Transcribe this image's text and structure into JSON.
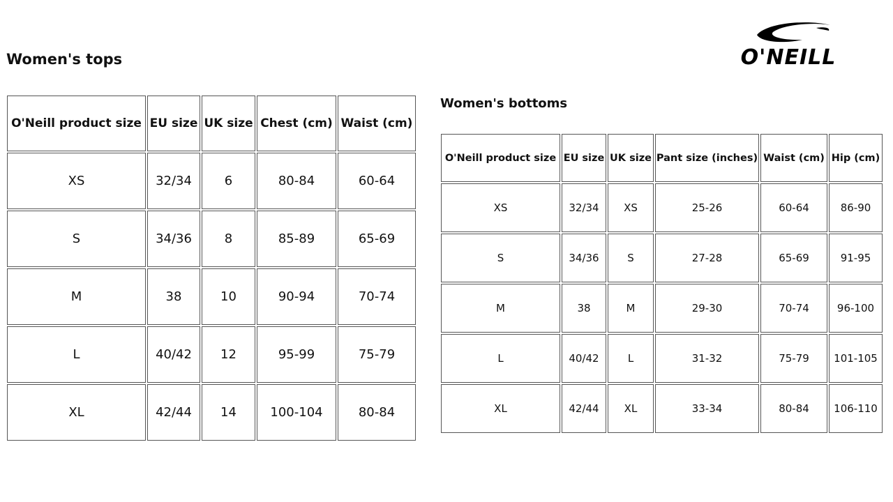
{
  "logo": {
    "text": "O'NEILL",
    "color": "#000000"
  },
  "tops": {
    "title": "Women's tops",
    "headers": [
      "O'Neill product size",
      "EU size",
      "UK size",
      "Chest (cm)",
      "Waist (cm)"
    ],
    "rows": [
      [
        "XS",
        "32/34",
        "6",
        "80-84",
        "60-64"
      ],
      [
        "S",
        "34/36",
        "8",
        "85-89",
        "65-69"
      ],
      [
        "M",
        "38",
        "10",
        "90-94",
        "70-74"
      ],
      [
        "L",
        "40/42",
        "12",
        "95-99",
        "75-79"
      ],
      [
        "XL",
        "42/44",
        "14",
        "100-104",
        "80-84"
      ]
    ]
  },
  "bottoms": {
    "title": "Women's bottoms",
    "headers": [
      "O'Neill product size",
      "EU size",
      "UK size",
      "Pant size (inches)",
      "Waist (cm)",
      "Hip (cm)"
    ],
    "rows": [
      [
        "XS",
        "32/34",
        "XS",
        "25-26",
        "60-64",
        "86-90"
      ],
      [
        "S",
        "34/36",
        "S",
        "27-28",
        "65-69",
        "91-95"
      ],
      [
        "M",
        "38",
        "M",
        "29-30",
        "70-74",
        "96-100"
      ],
      [
        "L",
        "40/42",
        "L",
        "31-32",
        "75-79",
        "101-105"
      ],
      [
        "XL",
        "42/44",
        "XL",
        "33-34",
        "80-84",
        "106-110"
      ]
    ]
  }
}
